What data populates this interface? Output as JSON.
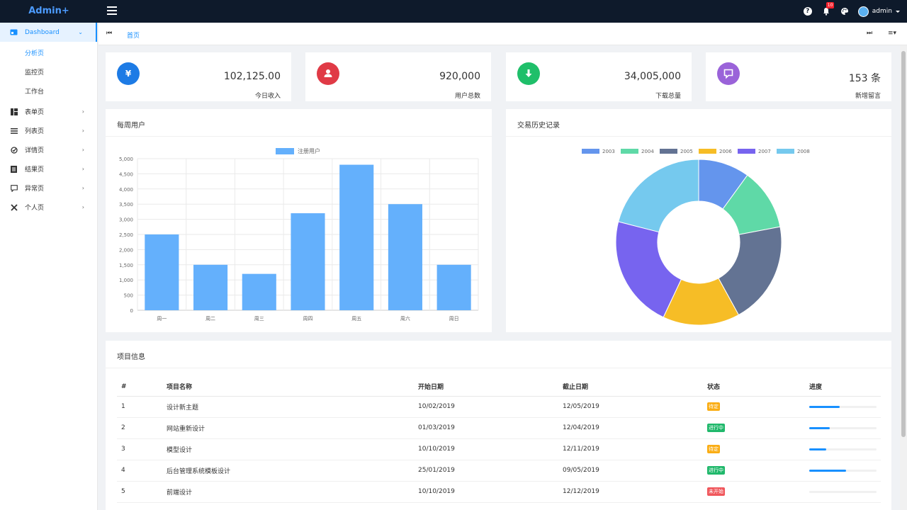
{
  "header": {
    "logo": "Admin+",
    "notifications_count": "10",
    "user": "admin",
    "help_glyph": "?"
  },
  "sidebar": {
    "items": [
      {
        "label": "Dashboard",
        "icon": "dashboard-icon",
        "active": true
      },
      {
        "label": "表单页",
        "icon": "form-icon"
      },
      {
        "label": "列表页",
        "icon": "list-icon"
      },
      {
        "label": "详情页",
        "icon": "detail-icon"
      },
      {
        "label": "结果页",
        "icon": "result-icon"
      },
      {
        "label": "异常页",
        "icon": "exception-icon"
      },
      {
        "label": "个人页",
        "icon": "user-settings-icon"
      }
    ],
    "dashboard_children": [
      "分析页",
      "监控页",
      "工作台"
    ]
  },
  "tabs": {
    "home": "首页"
  },
  "stats": [
    {
      "value": "102,125.00",
      "label": "今日收入",
      "icon": "yen-icon",
      "glyph": "¥",
      "color": "#1d7be5"
    },
    {
      "value": "920,000",
      "label": "用户总数",
      "icon": "user-icon",
      "glyph": "",
      "color": "#e03a46"
    },
    {
      "value": "34,005,000",
      "label": "下载总量",
      "icon": "download-icon",
      "glyph": "",
      "color": "#1fbf6a"
    },
    {
      "value": "153 条",
      "label": "新增留言",
      "icon": "message-icon",
      "glyph": "",
      "color": "#9a63d9"
    }
  ],
  "weekly": {
    "title": "每周用户"
  },
  "history": {
    "title": "交易历史记录"
  },
  "chart_data": [
    {
      "type": "bar",
      "title": "每周用户",
      "categories": [
        "周一",
        "周二",
        "周三",
        "周四",
        "周五",
        "周六",
        "周日"
      ],
      "series": [
        {
          "name": "注册用户",
          "values": [
            2500,
            1500,
            1200,
            3200,
            4800,
            3500,
            1500
          ]
        }
      ],
      "ylim": [
        0,
        5000
      ],
      "yticks": [
        "0",
        "500",
        "1,000",
        "1,500",
        "2,000",
        "2,500",
        "3,000",
        "3,500",
        "4,000",
        "4,500",
        "5,000"
      ],
      "color": "#64b0fc",
      "grid": true,
      "legend": "top-center"
    },
    {
      "type": "pie",
      "title": "交易历史记录",
      "categories": [
        "2003",
        "2004",
        "2005",
        "2006",
        "2007",
        "2008"
      ],
      "values": [
        10,
        12,
        20,
        15,
        22,
        21
      ],
      "colors": [
        "#6495ed",
        "#5fd9a7",
        "#637393",
        "#f6bd26",
        "#7764ef",
        "#75c9ee"
      ],
      "legend": "top-center"
    }
  ],
  "projects": {
    "title": "项目信息",
    "columns": [
      "#",
      "项目名称",
      "开始日期",
      "截止日期",
      "状态",
      "进度"
    ],
    "rows": [
      {
        "id": "1",
        "name": "设计新主题",
        "start": "10/02/2019",
        "end": "12/05/2019",
        "status": "待定",
        "status_color": "#faad14",
        "progress": 0.45
      },
      {
        "id": "2",
        "name": "网站重新设计",
        "start": "01/03/2019",
        "end": "12/04/2019",
        "status": "进行中",
        "status_color": "#20b86b",
        "progress": 0.3
      },
      {
        "id": "3",
        "name": "模型设计",
        "start": "10/10/2019",
        "end": "12/11/2019",
        "status": "待定",
        "status_color": "#faad14",
        "progress": 0.25
      },
      {
        "id": "4",
        "name": "后台管理系统模板设计",
        "start": "25/01/2019",
        "end": "09/05/2019",
        "status": "进行中",
        "status_color": "#20b86b",
        "progress": 0.55
      },
      {
        "id": "5",
        "name": "前端设计",
        "start": "10/10/2019",
        "end": "12/12/2019",
        "status": "未开始",
        "status_color": "#f0575c",
        "progress": 0.0
      }
    ]
  }
}
